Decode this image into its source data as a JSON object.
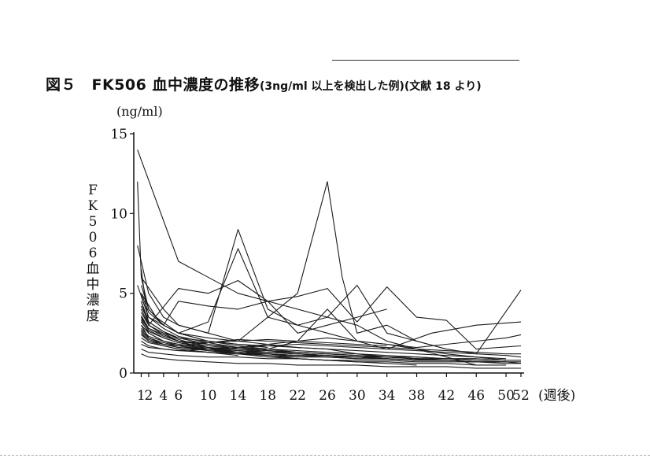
{
  "figure": {
    "title_main": "図５　FK506 血中濃度の推移",
    "title_sub": "(3ng/ml 以上を検出した例)(文献 18 より)",
    "unit": "(ng/ml)",
    "ylabel": "FK506血中濃度",
    "xunit": "(週後)"
  },
  "chart_data": {
    "type": "line",
    "title": "FK506 血中濃度の推移",
    "ylabel": "FK506血中濃度 (ng/ml)",
    "xlabel": "(週後)",
    "xlim": [
      0,
      52
    ],
    "ylim": [
      0,
      15
    ],
    "xticks": [
      1,
      2,
      4,
      6,
      10,
      14,
      18,
      22,
      26,
      30,
      34,
      38,
      42,
      46,
      50,
      52
    ],
    "xtick_labels": [
      "1",
      "2",
      "4",
      "6",
      "10",
      "14",
      "18",
      "22",
      "26",
      "30",
      "34",
      "38",
      "42",
      "46",
      "50",
      "52"
    ],
    "yticks": [
      0,
      5,
      10,
      15
    ],
    "ytick_labels": [
      "0",
      "5",
      "10",
      "15"
    ],
    "series": [
      {
        "x": [
          0.5,
          6,
          14,
          22,
          26,
          30,
          34,
          38,
          42,
          46
        ],
        "y": [
          14,
          7,
          5,
          4,
          3.5,
          3,
          2,
          1.5,
          1,
          0.5
        ]
      },
      {
        "x": [
          0.5,
          1,
          2,
          4,
          6,
          10,
          14,
          18,
          22,
          26,
          30,
          34,
          40
        ],
        "y": [
          12,
          6,
          4,
          3,
          2.5,
          2.2,
          2,
          1.8,
          1.6,
          1.5,
          1.2,
          1,
          0.8
        ]
      },
      {
        "x": [
          0.5,
          2,
          4,
          6,
          10,
          14,
          18,
          22,
          26,
          30,
          34,
          38,
          42,
          46,
          50
        ],
        "y": [
          8,
          5,
          3.5,
          3,
          2.5,
          9,
          4,
          3,
          2.5,
          2,
          1.8,
          1.5,
          1.2,
          1,
          0.8
        ]
      },
      {
        "x": [
          1,
          4,
          6,
          10,
          14,
          18,
          22,
          26,
          28,
          30,
          34,
          38,
          42
        ],
        "y": [
          6,
          4,
          3,
          2.5,
          2,
          3.5,
          5,
          12,
          6,
          2.5,
          3,
          2,
          1.5
        ]
      },
      {
        "x": [
          1,
          3,
          6,
          10,
          14,
          18,
          22,
          26,
          30,
          34,
          38,
          42,
          46,
          52
        ],
        "y": [
          5,
          3.5,
          2.5,
          3.2,
          7.8,
          3.5,
          3,
          3.5,
          5.5,
          2.5,
          2,
          1.5,
          1.2,
          5.2
        ]
      },
      {
        "x": [
          1,
          2,
          6,
          10,
          14,
          18,
          22,
          26,
          30,
          34,
          38,
          42,
          46,
          52
        ],
        "y": [
          4.5,
          3,
          5.3,
          5,
          5.8,
          4.5,
          4.8,
          5.3,
          3.2,
          5.4,
          3.5,
          3.3,
          1.5,
          1.7
        ]
      },
      {
        "x": [
          1,
          2,
          4,
          6,
          10,
          14,
          18,
          22,
          26,
          30,
          34,
          40,
          46,
          52
        ],
        "y": [
          6.5,
          3,
          2.5,
          2,
          1.5,
          1.2,
          1.5,
          2,
          4,
          2,
          1.5,
          2.5,
          3,
          3.2
        ]
      },
      {
        "x": [
          0.5,
          2,
          4,
          6,
          10,
          14,
          18,
          22,
          26,
          30,
          34
        ],
        "y": [
          5.5,
          3.5,
          3,
          4.5,
          4.2,
          4,
          4.5,
          2.5,
          3,
          3.5,
          4
        ]
      },
      {
        "x": [
          1,
          2,
          4,
          6,
          10,
          14,
          18,
          22,
          26,
          30,
          34,
          38,
          42,
          46,
          50
        ],
        "y": [
          4,
          3,
          2.5,
          2.2,
          2,
          1.8,
          1.7,
          1.6,
          1.5,
          1.4,
          1.3,
          1.2,
          1.1,
          1,
          0.9
        ]
      },
      {
        "x": [
          1,
          2,
          4,
          6,
          10,
          14,
          18,
          22,
          26,
          30,
          34,
          38,
          42,
          46,
          50,
          52
        ],
        "y": [
          3.5,
          2.8,
          2.3,
          2,
          1.8,
          1.6,
          1.5,
          1.4,
          1.3,
          1.2,
          1.1,
          1,
          0.9,
          0.8,
          0.7,
          0.7
        ]
      },
      {
        "x": [
          1,
          2,
          4,
          6,
          10,
          14,
          18,
          22,
          26,
          30,
          34,
          38,
          42,
          46
        ],
        "y": [
          3,
          2.5,
          2,
          1.8,
          1.5,
          1.3,
          1.2,
          1.1,
          1,
          1,
          0.9,
          0.8,
          0.8,
          0.7
        ]
      },
      {
        "x": [
          1,
          2,
          4,
          6,
          10,
          14,
          18,
          22,
          26,
          30,
          34,
          38
        ],
        "y": [
          4.5,
          3.2,
          2.6,
          2.1,
          1.6,
          1.3,
          1.1,
          0.9,
          0.8,
          0.7,
          0.6,
          0.5
        ]
      },
      {
        "x": [
          1,
          2,
          4,
          6,
          10,
          14,
          18,
          22,
          26,
          30,
          34,
          38,
          42,
          46,
          50,
          52
        ],
        "y": [
          2.5,
          2,
          1.8,
          1.6,
          1.4,
          1.3,
          1.2,
          1.1,
          1,
          0.9,
          0.9,
          0.8,
          0.8,
          0.7,
          0.7,
          0.6
        ]
      },
      {
        "x": [
          1,
          2,
          4,
          6,
          10,
          14,
          18,
          22,
          26,
          30,
          34,
          38,
          42
        ],
        "y": [
          5,
          3.8,
          3,
          2.5,
          2,
          1.7,
          1.5,
          1.3,
          1.2,
          1.1,
          1,
          0.9,
          0.8
        ]
      },
      {
        "x": [
          1,
          2,
          4,
          6,
          10,
          14,
          18,
          22,
          26
        ],
        "y": [
          3.2,
          2.6,
          2.2,
          1.9,
          1.6,
          1.4,
          1.3,
          1.2,
          1.1
        ]
      },
      {
        "x": [
          1,
          2,
          4,
          6,
          10,
          14,
          18,
          22,
          26,
          30,
          34,
          38,
          42,
          46,
          50,
          52
        ],
        "y": [
          2,
          1.7,
          1.5,
          1.4,
          1.3,
          1.2,
          1.2,
          1.1,
          1.1,
          1,
          1,
          0.9,
          0.9,
          0.9,
          0.8,
          0.8
        ]
      },
      {
        "x": [
          1,
          2,
          4,
          6,
          10,
          14,
          18,
          22,
          26,
          30,
          34,
          38,
          42,
          46
        ],
        "y": [
          3.8,
          3,
          2.4,
          2,
          1.7,
          1.5,
          1.4,
          1.3,
          1.2,
          1.1,
          1,
          1,
          0.9,
          0.9
        ]
      },
      {
        "x": [
          1,
          2,
          4,
          6,
          10,
          14,
          18,
          22,
          26,
          30
        ],
        "y": [
          2.8,
          2.3,
          2,
          1.8,
          1.6,
          1.5,
          1.4,
          1.3,
          1.2,
          1.1
        ]
      },
      {
        "x": [
          1,
          2,
          4,
          6,
          10,
          14,
          18,
          22,
          26,
          30,
          34,
          38,
          42,
          46,
          50,
          52
        ],
        "y": [
          1.5,
          1.3,
          1.2,
          1.1,
          1,
          1,
          0.9,
          0.9,
          0.8,
          0.8,
          0.8,
          0.7,
          0.7,
          0.7,
          0.6,
          0.6
        ]
      },
      {
        "x": [
          1,
          2,
          4,
          6,
          10,
          14,
          18,
          22,
          26,
          30,
          34,
          38
        ],
        "y": [
          4.2,
          3.2,
          2.6,
          2.2,
          1.8,
          1.5,
          1.3,
          1.2,
          1.1,
          1,
          0.9,
          0.8
        ]
      },
      {
        "x": [
          1,
          2,
          4,
          6,
          10,
          14,
          18,
          22,
          26,
          30,
          34,
          38,
          42,
          46,
          50
        ],
        "y": [
          2.2,
          1.9,
          1.7,
          1.5,
          1.3,
          1.2,
          1.1,
          1,
          1,
          0.9,
          0.9,
          0.8,
          0.8,
          0.7,
          0.7
        ]
      },
      {
        "x": [
          1,
          2,
          4,
          6,
          10,
          14,
          18,
          22,
          26,
          30,
          34,
          38,
          42,
          46,
          50,
          52
        ],
        "y": [
          3,
          2.2,
          1.8,
          1.6,
          1.5,
          1.6,
          1.8,
          2,
          2.2,
          2,
          1.8,
          1.6,
          1.8,
          2,
          2.2,
          2.4
        ]
      },
      {
        "x": [
          1,
          2,
          4,
          6,
          10,
          14,
          18,
          22,
          26,
          30,
          34,
          38,
          42,
          46,
          50,
          52
        ],
        "y": [
          2.6,
          2.1,
          1.8,
          1.7,
          1.9,
          2.1,
          2,
          1.9,
          1.8,
          1.7,
          1.6,
          1.5,
          1.4,
          1.3,
          1.2,
          1.2
        ]
      },
      {
        "x": [
          1,
          2,
          4,
          6,
          10,
          14,
          18,
          22,
          26,
          30,
          34
        ],
        "y": [
          3.6,
          2.8,
          2.4,
          2,
          1.9,
          2,
          2.1,
          2,
          1.9,
          1.8,
          1.7
        ]
      },
      {
        "x": [
          1,
          2,
          4,
          6,
          10,
          14,
          18
        ],
        "y": [
          5.5,
          4,
          3,
          2.5,
          2,
          1.8,
          1.6
        ]
      },
      {
        "x": [
          1,
          2,
          4,
          6,
          10,
          14
        ],
        "y": [
          2.4,
          2,
          1.7,
          1.5,
          1.3,
          1.1
        ]
      },
      {
        "x": [
          1,
          2,
          4,
          6,
          10,
          14,
          18,
          22
        ],
        "y": [
          3.4,
          2.7,
          2.2,
          1.9,
          1.6,
          1.4,
          1.2,
          1
        ]
      },
      {
        "x": [
          1,
          2,
          4,
          6,
          10,
          14,
          18,
          22,
          26,
          30,
          34,
          38,
          42,
          46,
          50,
          52
        ],
        "y": [
          1.2,
          1,
          0.9,
          0.8,
          0.7,
          0.6,
          0.6,
          0.5,
          0.5,
          0.5,
          0.4,
          0.4,
          0.4,
          0.3,
          0.3,
          0.3
        ]
      },
      {
        "x": [
          1,
          2,
          4,
          6,
          10,
          14,
          18,
          22,
          26,
          30,
          34,
          38,
          42
        ],
        "y": [
          2.7,
          2.2,
          1.9,
          1.7,
          1.5,
          1.4,
          1.3,
          1.2,
          1.1,
          1,
          1,
          0.9,
          0.9
        ]
      },
      {
        "x": [
          1,
          2,
          4,
          6,
          10,
          14,
          18,
          22,
          26,
          30,
          34,
          38,
          42,
          46,
          50
        ],
        "y": [
          3.3,
          2.5,
          2,
          1.7,
          1.4,
          1.2,
          1,
          0.9,
          0.8,
          0.7,
          0.7,
          0.6,
          0.6,
          0.5,
          0.5
        ]
      },
      {
        "x": [
          1,
          2,
          4,
          6,
          10,
          14,
          18,
          22,
          26,
          30,
          34,
          38,
          42,
          46,
          50,
          52
        ],
        "y": [
          1.8,
          1.6,
          1.5,
          1.4,
          1.5,
          1.6,
          1.7,
          1.8,
          1.7,
          1.6,
          1.5,
          1.4,
          1.3,
          1.2,
          1.1,
          1
        ]
      },
      {
        "x": [
          1,
          2,
          4,
          6,
          10,
          14,
          18,
          22,
          26,
          30,
          34,
          38,
          42,
          46
        ],
        "y": [
          4.8,
          3.5,
          2.8,
          2.3,
          1.9,
          1.6,
          1.4,
          1.2,
          1.1,
          1,
          0.9,
          0.8,
          0.8,
          0.7
        ]
      }
    ]
  }
}
